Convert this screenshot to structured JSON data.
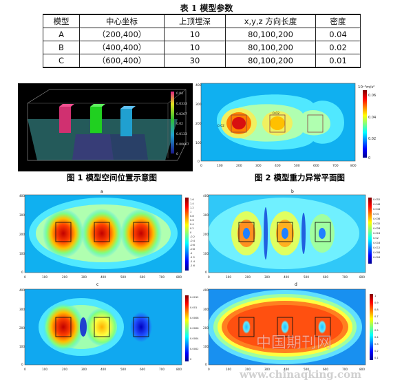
{
  "table": {
    "title": "表 1  模型参数",
    "headers": [
      "模型",
      "中心坐标",
      "上顶埋深",
      "x,y,z 方向长度",
      "密度"
    ],
    "rows": [
      [
        "A",
        "（200,400）",
        "10",
        "80,100,200",
        "0.04"
      ],
      [
        "B",
        "（400,400）",
        "10",
        "80,100,200",
        "0.02"
      ],
      [
        "C",
        "（600,400）",
        "30",
        "80,100,200",
        "0.01"
      ]
    ]
  },
  "figures": {
    "fig1_caption": "图 1  模型空间位置示意图",
    "fig2_caption": "图 2  模型重力异常平面图",
    "fig1_colorbar_ticks": [
      "0.04",
      "0.0333",
      "0.0267",
      "0.02",
      "0.0133",
      "0.00667",
      "0"
    ],
    "fig2_unit": "10⁻⁵m/s²",
    "fig2_colorbar_ticks": [
      "0.06",
      "0.04",
      "0.02",
      "0"
    ],
    "fig2_contour_labels": [
      "0.02",
      "0.02"
    ],
    "x_ticks": [
      "0",
      "100",
      "200",
      "300",
      "400",
      "500",
      "600",
      "700",
      "800"
    ],
    "y_ticks": [
      "400",
      "300",
      "200",
      "100",
      "0"
    ],
    "panel_a_label": "a",
    "panel_b_label": "b",
    "panel_c_label": "c",
    "panel_d_label": "d",
    "panel_a_colorbar": [
      "1.6",
      "1.4",
      "1.2",
      "1",
      "0.8",
      "0.6",
      "0.4",
      "0.2",
      "0",
      "-0.2",
      "-0.4",
      "-0.6",
      "-0.8",
      "-1",
      "-1.2",
      "-1.4",
      "-1.6"
    ],
    "panel_b_colorbar": [
      "0.052",
      "0.048",
      "0.044",
      "0.04",
      "0.036",
      "0.032",
      "0.028",
      "0.024",
      "0.02",
      "0.016",
      "0.012",
      "0.008",
      "0.004"
    ],
    "panel_c_colorbar": [
      "0.0012",
      "0.001",
      "0.0008",
      "0.0006",
      "0.0004",
      "0.0002",
      "0"
    ],
    "panel_d_colorbar": [
      "1",
      "0.9",
      "0.8",
      "0.7",
      "0.6",
      "0.5",
      "0.4",
      "0.3",
      "0.2",
      "0.1"
    ]
  },
  "watermark": {
    "cn": "中国期刊网",
    "url": "www.chinaqking.com"
  }
}
